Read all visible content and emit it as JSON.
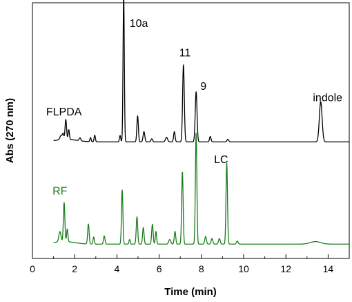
{
  "chart_data": {
    "type": "line",
    "xlabel": "Time (min)",
    "ylabel": "Abs (270 nm)",
    "xlim": [
      0,
      15
    ],
    "ylim": [
      0,
      1
    ],
    "x_ticks": [
      "0",
      "2",
      "4",
      "6",
      "8",
      "10",
      "12",
      "14"
    ],
    "grid": false,
    "colors": {
      "FLPDA": "#000000",
      "RF": "#1a7d1a"
    },
    "series": [
      {
        "name": "FLPDA",
        "baseline": 0.456,
        "peaks": [
          {
            "t": 1.35,
            "h": 0.016,
            "w": 0.05
          },
          {
            "t": 1.45,
            "h": 0.022,
            "w": 0.035
          },
          {
            "t": 1.58,
            "h": 0.078,
            "w": 0.035
          },
          {
            "t": 1.72,
            "h": 0.038,
            "w": 0.03
          },
          {
            "t": 2.25,
            "h": 0.012,
            "w": 0.04
          },
          {
            "t": 2.75,
            "h": 0.016,
            "w": 0.03
          },
          {
            "t": 2.95,
            "h": 0.026,
            "w": 0.03
          },
          {
            "t": 4.15,
            "h": 0.025,
            "w": 0.03
          },
          {
            "t": 4.32,
            "h": 0.58,
            "w": 0.03
          },
          {
            "t": 4.98,
            "h": 0.102,
            "w": 0.035
          },
          {
            "t": 5.28,
            "h": 0.04,
            "w": 0.04
          },
          {
            "t": 5.65,
            "h": 0.012,
            "w": 0.04
          },
          {
            "t": 6.35,
            "h": 0.018,
            "w": 0.05
          },
          {
            "t": 6.72,
            "h": 0.04,
            "w": 0.035
          },
          {
            "t": 7.15,
            "h": 0.301,
            "w": 0.04
          },
          {
            "t": 7.75,
            "h": 0.196,
            "w": 0.042
          },
          {
            "t": 8.42,
            "h": 0.021,
            "w": 0.035
          },
          {
            "t": 9.25,
            "h": 0.01,
            "w": 0.04
          },
          {
            "t": 13.65,
            "h": 0.157,
            "w": 0.065
          }
        ],
        "hump": {
          "t": 1.6,
          "h": 0.01,
          "w": 0.5
        }
      },
      {
        "name": "RF",
        "baseline": 0.056,
        "peaks": [
          {
            "t": 1.3,
            "h": 0.04,
            "w": 0.05
          },
          {
            "t": 1.5,
            "h": 0.153,
            "w": 0.035
          },
          {
            "t": 1.65,
            "h": 0.05,
            "w": 0.03
          },
          {
            "t": 2.65,
            "h": 0.078,
            "w": 0.035
          },
          {
            "t": 2.9,
            "h": 0.028,
            "w": 0.03
          },
          {
            "t": 3.4,
            "h": 0.032,
            "w": 0.035
          },
          {
            "t": 4.25,
            "h": 0.212,
            "w": 0.033
          },
          {
            "t": 4.6,
            "h": 0.018,
            "w": 0.03
          },
          {
            "t": 4.95,
            "h": 0.107,
            "w": 0.035
          },
          {
            "t": 5.25,
            "h": 0.065,
            "w": 0.035
          },
          {
            "t": 5.68,
            "h": 0.078,
            "w": 0.035
          },
          {
            "t": 5.85,
            "h": 0.05,
            "w": 0.03
          },
          {
            "t": 6.5,
            "h": 0.018,
            "w": 0.05
          },
          {
            "t": 6.75,
            "h": 0.05,
            "w": 0.035
          },
          {
            "t": 7.1,
            "h": 0.283,
            "w": 0.035
          },
          {
            "t": 7.75,
            "h": 0.435,
            "w": 0.035
          },
          {
            "t": 8.2,
            "h": 0.03,
            "w": 0.04
          },
          {
            "t": 8.5,
            "h": 0.022,
            "w": 0.04
          },
          {
            "t": 8.85,
            "h": 0.022,
            "w": 0.04
          },
          {
            "t": 9.2,
            "h": 0.318,
            "w": 0.035
          },
          {
            "t": 9.7,
            "h": 0.012,
            "w": 0.04
          },
          {
            "t": 13.4,
            "h": 0.01,
            "w": 0.25
          }
        ],
        "hump": {
          "t": 1.5,
          "h": 0.01,
          "w": 0.5
        }
      }
    ],
    "annotations": [
      {
        "text": "10a",
        "x": 4.6,
        "y": 0.905,
        "color": "#000000"
      },
      {
        "text": "11",
        "x": 6.95,
        "y": 0.79,
        "color": "#000000"
      },
      {
        "text": "9",
        "x": 7.95,
        "y": 0.66,
        "color": "#000000"
      },
      {
        "text": "indole",
        "x": 13.28,
        "y": 0.615,
        "color": "#000000"
      },
      {
        "text": "FLPDA",
        "x": 0.65,
        "y": 0.56,
        "color": "#000000"
      },
      {
        "text": "LC",
        "x": 8.6,
        "y": 0.373,
        "color": "#000000"
      },
      {
        "text": "RF",
        "x": 0.95,
        "y": 0.25,
        "color": "#1a7d1a"
      }
    ]
  }
}
